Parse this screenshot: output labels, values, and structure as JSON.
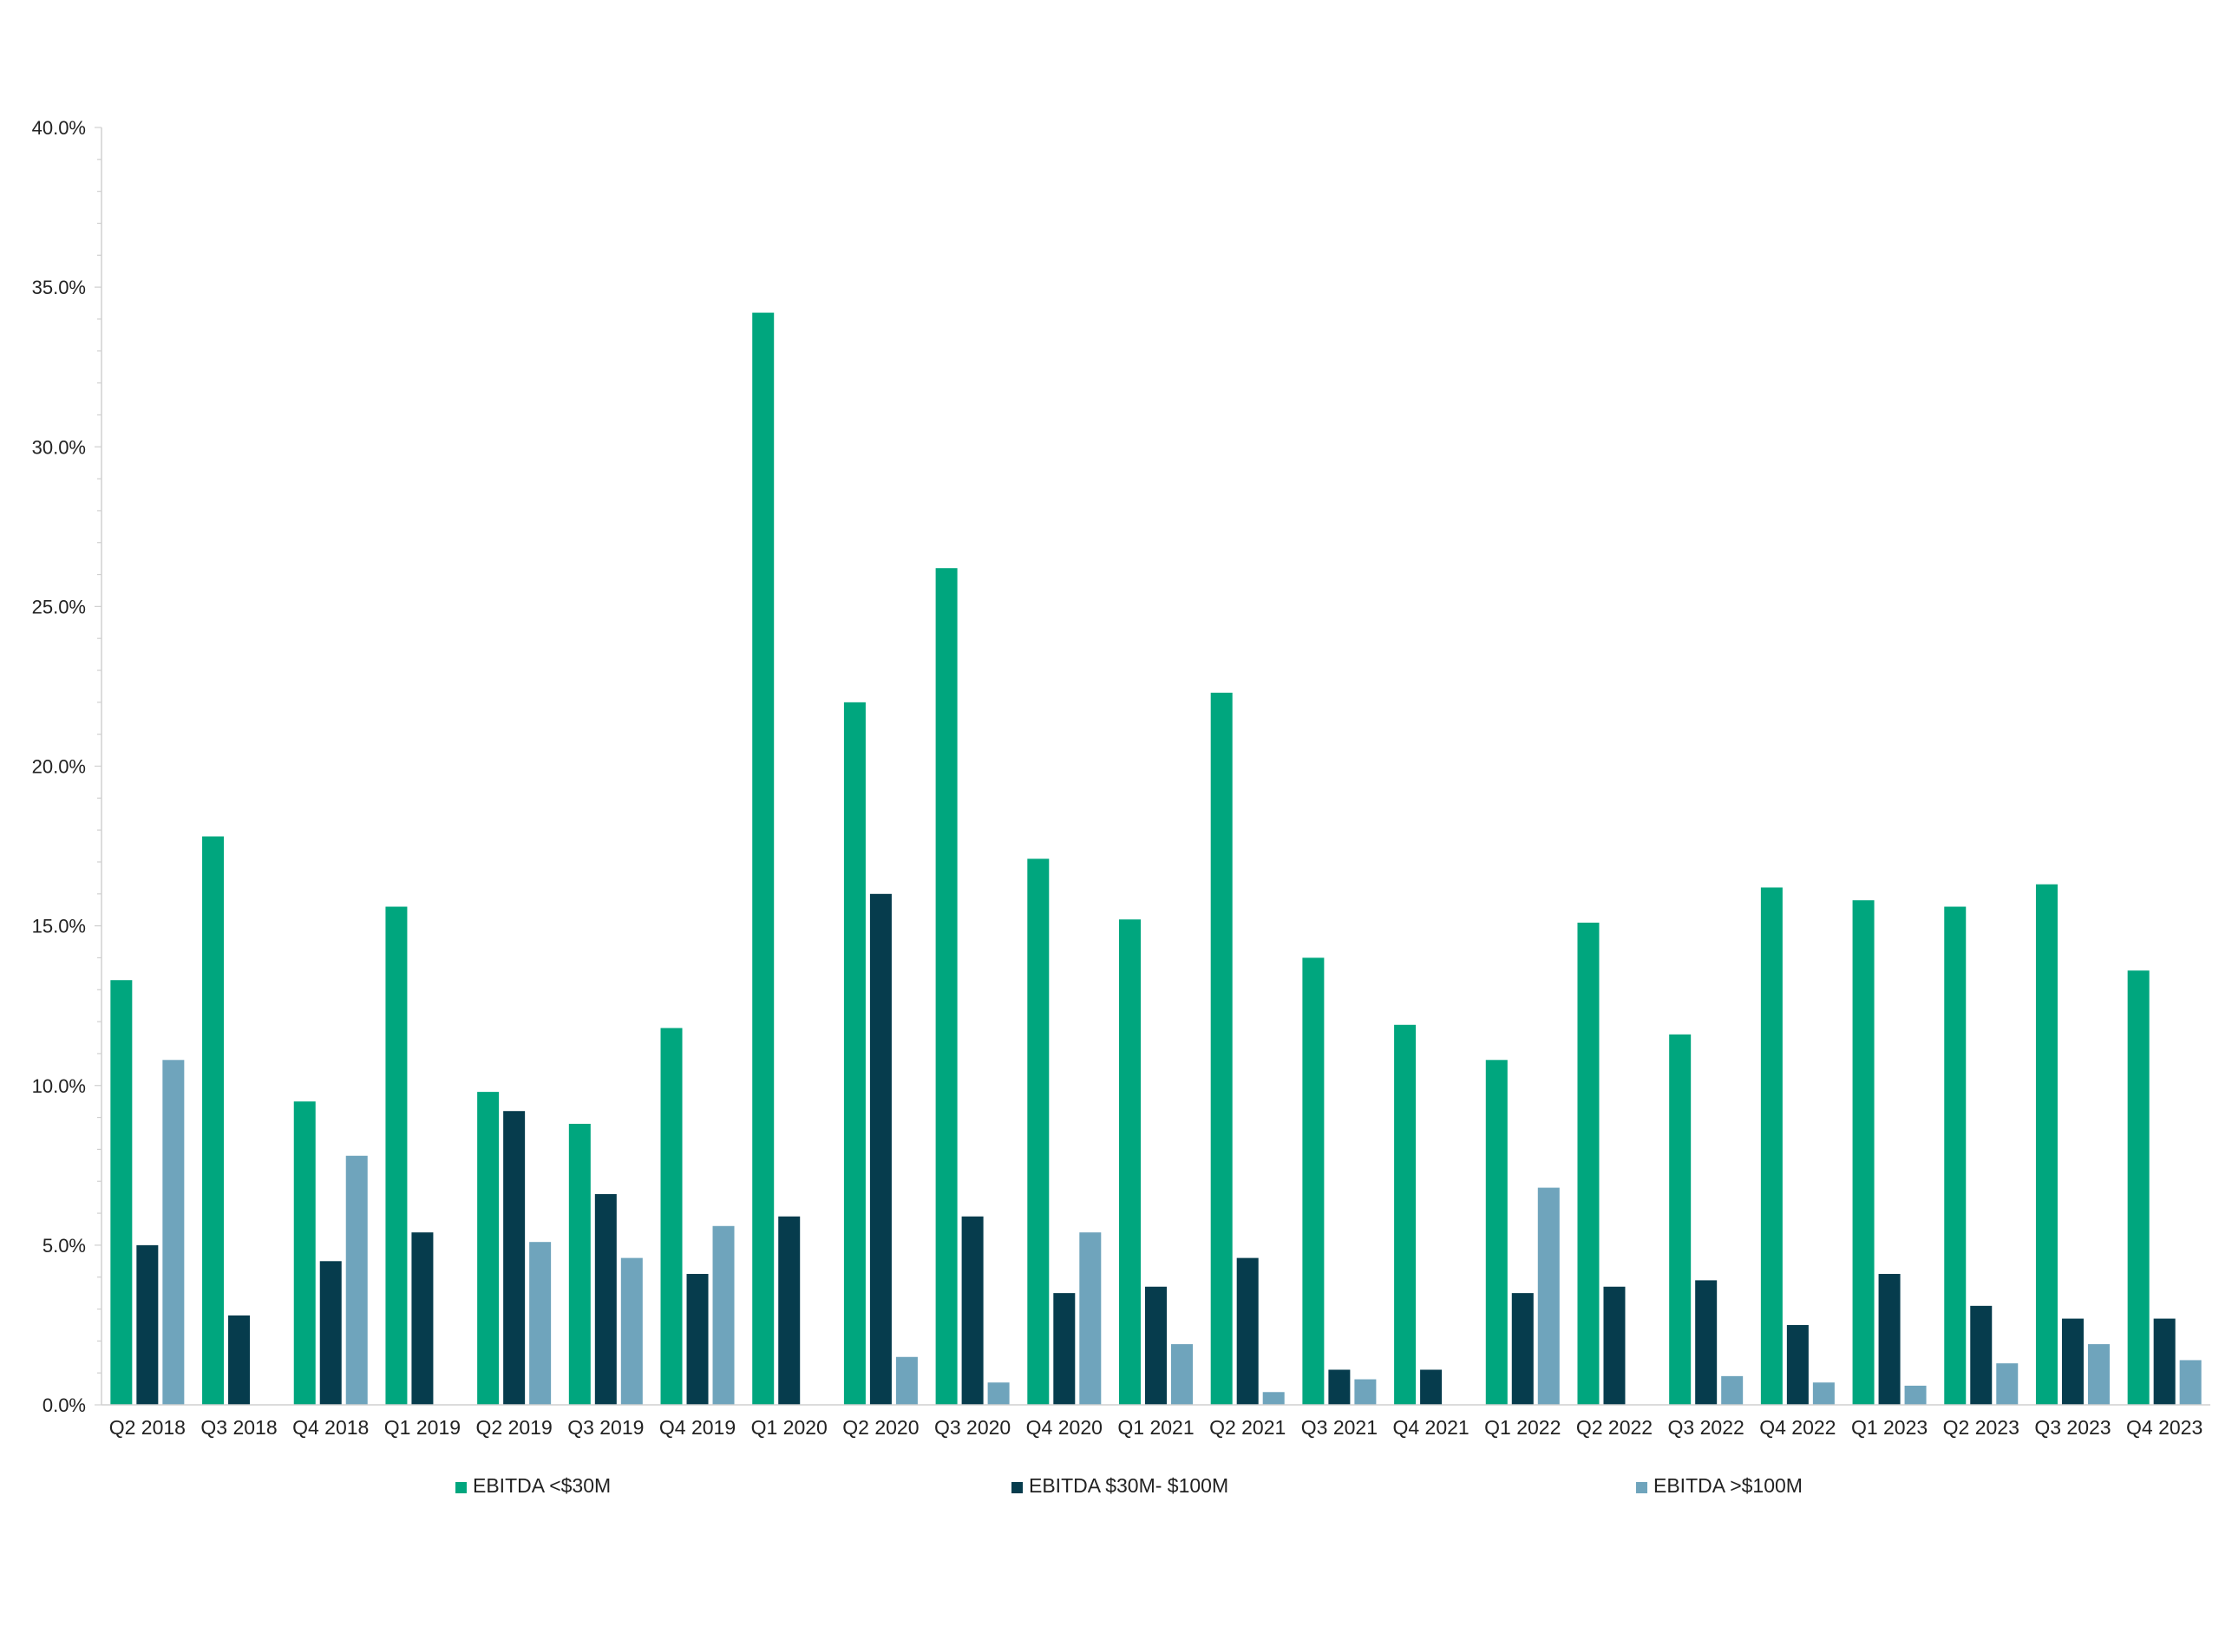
{
  "chart_data": {
    "type": "bar",
    "title": "",
    "xlabel": "",
    "ylabel": "",
    "ylim": [
      0,
      40
    ],
    "yticks": [
      "0.0%",
      "5.0%",
      "10.0%",
      "15.0%",
      "20.0%",
      "25.0%",
      "30.0%",
      "35.0%",
      "40.0%"
    ],
    "y_tick_values": [
      0,
      5,
      10,
      15,
      20,
      25,
      30,
      35,
      40
    ],
    "grid": false,
    "legend_position": "bottom",
    "categories": [
      "Q2 2018",
      "Q3 2018",
      "Q4 2018",
      "Q1 2019",
      "Q2 2019",
      "Q3 2019",
      "Q4 2019",
      "Q1 2020",
      "Q2 2020",
      "Q3 2020",
      "Q4 2020",
      "Q1 2021",
      "Q2 2021",
      "Q3 2021",
      "Q4 2021",
      "Q1 2022",
      "Q2 2022",
      "Q3 2022",
      "Q4 2022",
      "Q1 2023",
      "Q2 2023",
      "Q3 2023",
      "Q4 2023"
    ],
    "series": [
      {
        "name": "EBITDA <$30M",
        "color": "#00A67E",
        "values": [
          13.3,
          17.8,
          9.5,
          15.6,
          9.8,
          8.8,
          11.8,
          34.2,
          22.0,
          26.2,
          17.1,
          15.2,
          22.3,
          14.0,
          11.9,
          10.8,
          15.1,
          11.6,
          16.2,
          15.8,
          15.6,
          16.3,
          13.6
        ]
      },
      {
        "name": "EBITDA $30M- $100M",
        "color": "#063C4D",
        "values": [
          5.0,
          2.8,
          4.5,
          5.4,
          9.2,
          6.6,
          4.1,
          5.9,
          16.0,
          5.9,
          3.5,
          3.7,
          4.6,
          1.1,
          1.1,
          3.5,
          3.7,
          3.9,
          2.5,
          4.1,
          3.1,
          2.7,
          2.7
        ]
      },
      {
        "name": "EBITDA >$100M",
        "color": "#6FA4BC",
        "values": [
          10.8,
          0,
          7.8,
          0,
          5.1,
          4.6,
          5.6,
          0,
          1.5,
          0.7,
          5.4,
          1.9,
          0.4,
          0.8,
          0,
          6.8,
          0,
          0.9,
          0.7,
          0.6,
          1.3,
          1.9,
          1.4
        ]
      }
    ]
  }
}
